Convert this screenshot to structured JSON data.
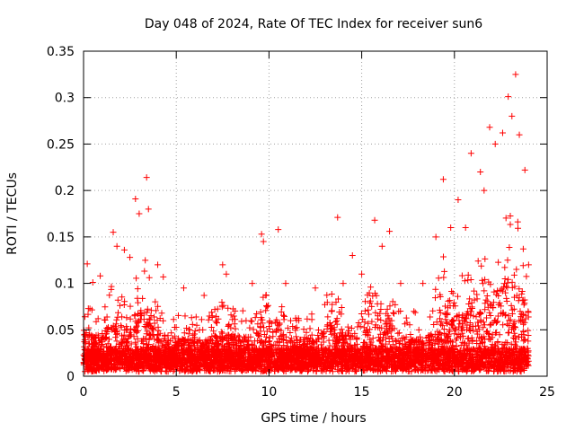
{
  "chart_data": {
    "type": "scatter",
    "title": "Day 048 of 2024, Rate Of TEC Index for receiver sun6",
    "xlabel": "GPS time / hours",
    "ylabel": "ROTI / TECUs",
    "xlim": [
      0,
      25
    ],
    "ylim": [
      0,
      0.35
    ],
    "xticks": [
      0,
      5,
      10,
      15,
      20,
      25
    ],
    "xtick_labels": [
      "0",
      "5",
      "10",
      "15",
      "20",
      "25"
    ],
    "yticks": [
      0,
      0.05,
      0.1,
      0.15,
      0.2,
      0.25,
      0.3,
      0.35
    ],
    "ytick_labels": [
      "0",
      "0.05",
      "0.1",
      "0.15",
      "0.2",
      "0.25",
      "0.3",
      "0.35"
    ],
    "grid": true,
    "marker": "+",
    "marker_color": "#ff0000",
    "data_time_range_hours": [
      0,
      24
    ],
    "series": [
      {
        "name": "ROTI",
        "note": "dense point cloud; representative points read from figure",
        "points": [
          [
            0.2,
            0.121
          ],
          [
            0.5,
            0.101
          ],
          [
            0.9,
            0.108
          ],
          [
            1.6,
            0.155
          ],
          [
            1.8,
            0.14
          ],
          [
            2.2,
            0.136
          ],
          [
            2.5,
            0.128
          ],
          [
            2.8,
            0.191
          ],
          [
            3.0,
            0.175
          ],
          [
            3.4,
            0.214
          ],
          [
            3.5,
            0.18
          ],
          [
            4.0,
            0.12
          ],
          [
            4.3,
            0.107
          ],
          [
            5.4,
            0.095
          ],
          [
            6.5,
            0.087
          ],
          [
            7.5,
            0.12
          ],
          [
            7.7,
            0.11
          ],
          [
            9.1,
            0.1
          ],
          [
            9.6,
            0.153
          ],
          [
            9.7,
            0.145
          ],
          [
            10.5,
            0.158
          ],
          [
            10.9,
            0.1
          ],
          [
            12.5,
            0.095
          ],
          [
            13.7,
            0.171
          ],
          [
            14.0,
            0.1
          ],
          [
            14.5,
            0.13
          ],
          [
            15.0,
            0.11
          ],
          [
            15.7,
            0.168
          ],
          [
            16.1,
            0.14
          ],
          [
            16.5,
            0.156
          ],
          [
            17.1,
            0.1
          ],
          [
            18.3,
            0.1
          ],
          [
            19.0,
            0.15
          ],
          [
            19.4,
            0.212
          ],
          [
            19.8,
            0.16
          ],
          [
            20.2,
            0.19
          ],
          [
            20.6,
            0.16
          ],
          [
            20.9,
            0.24
          ],
          [
            21.4,
            0.22
          ],
          [
            21.6,
            0.2
          ],
          [
            21.9,
            0.268
          ],
          [
            22.2,
            0.25
          ],
          [
            22.6,
            0.262
          ],
          [
            22.9,
            0.301
          ],
          [
            23.1,
            0.28
          ],
          [
            23.3,
            0.325
          ],
          [
            23.5,
            0.26
          ],
          [
            23.8,
            0.222
          ],
          [
            24.0,
            0.12
          ]
        ]
      }
    ]
  }
}
